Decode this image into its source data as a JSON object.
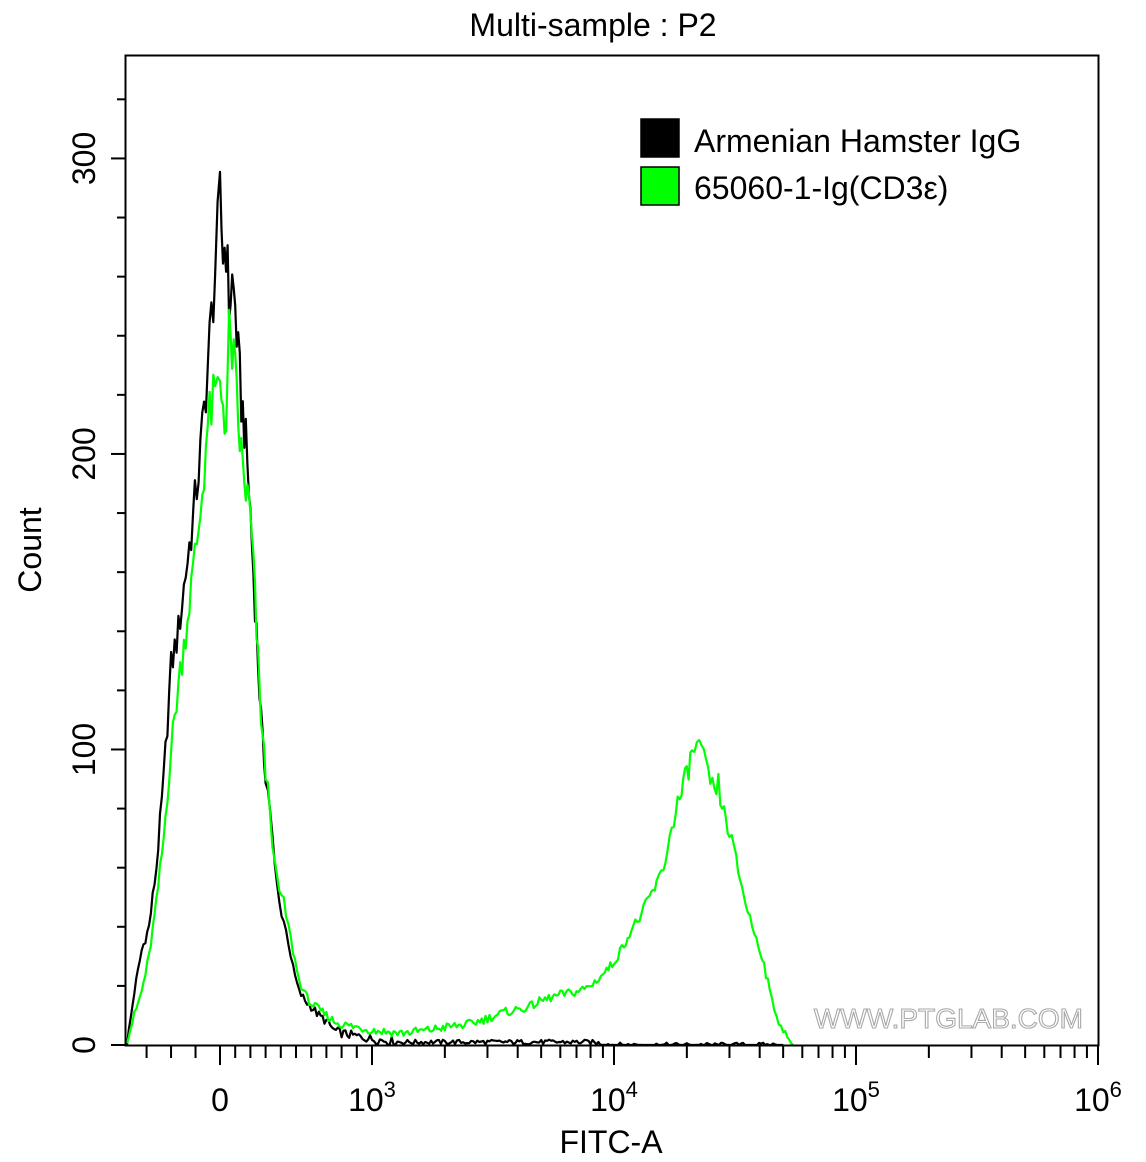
{
  "chart_data": {
    "type": "area",
    "title": "Multi-sample : P2",
    "xlabel": "FITC-A",
    "ylabel": "Count",
    "x_scale": "biexponential",
    "ylim": [
      0,
      335
    ],
    "y_ticks": [
      0,
      100,
      200,
      300
    ],
    "y_tick_labels": [
      "0",
      "100",
      "200",
      "300"
    ],
    "x_ticks": [
      {
        "label": "0",
        "base": "",
        "exp": "",
        "value": 0
      },
      {
        "label": "",
        "base": "10",
        "exp": "3",
        "value": 1000
      },
      {
        "label": "",
        "base": "10",
        "exp": "4",
        "value": 10000
      },
      {
        "label": "",
        "base": "10",
        "exp": "5",
        "value": 100000
      },
      {
        "label": "",
        "base": "10",
        "exp": "6",
        "value": 1000000
      }
    ],
    "legend": {
      "placement": "top-right"
    },
    "watermark": "WWW.PTGLAB.COM",
    "series": [
      {
        "name": "Armenian Hamster IgG",
        "color": "#000000",
        "points": [
          [
            -380,
            0
          ],
          [
            -350,
            18
          ],
          [
            -320,
            32
          ],
          [
            -290,
            40
          ],
          [
            -260,
            60
          ],
          [
            -230,
            90
          ],
          [
            -200,
            128
          ],
          [
            -170,
            140
          ],
          [
            -140,
            160
          ],
          [
            -110,
            178
          ],
          [
            -80,
            200
          ],
          [
            -50,
            230
          ],
          [
            -20,
            262
          ],
          [
            0,
            285
          ],
          [
            20,
            268
          ],
          [
            40,
            272
          ],
          [
            60,
            250
          ],
          [
            80,
            258
          ],
          [
            100,
            250
          ],
          [
            120,
            232
          ],
          [
            140,
            218
          ],
          [
            160,
            210
          ],
          [
            180,
            196
          ],
          [
            200,
            180
          ],
          [
            220,
            160
          ],
          [
            240,
            140
          ],
          [
            260,
            120
          ],
          [
            280,
            102
          ],
          [
            300,
            92
          ],
          [
            330,
            80
          ],
          [
            360,
            60
          ],
          [
            390,
            48
          ],
          [
            420,
            42
          ],
          [
            450,
            35
          ],
          [
            480,
            26
          ],
          [
            520,
            18
          ],
          [
            560,
            15
          ],
          [
            600,
            13
          ],
          [
            650,
            10
          ],
          [
            700,
            8
          ],
          [
            750,
            5
          ],
          [
            800,
            4
          ],
          [
            900,
            3
          ],
          [
            1000,
            2
          ],
          [
            1300,
            1
          ],
          [
            2000,
            1
          ],
          [
            3000,
            1
          ],
          [
            5000,
            1
          ],
          [
            8000,
            1
          ],
          [
            10000,
            0
          ],
          [
            20000,
            0
          ],
          [
            50000,
            0
          ]
        ]
      },
      {
        "name": "65060-1-Ig(CD3ε)",
        "color": "#00ff00",
        "points": [
          [
            -380,
            2
          ],
          [
            -350,
            10
          ],
          [
            -320,
            18
          ],
          [
            -290,
            30
          ],
          [
            -260,
            48
          ],
          [
            -230,
            70
          ],
          [
            -200,
            100
          ],
          [
            -170,
            122
          ],
          [
            -140,
            140
          ],
          [
            -110,
            160
          ],
          [
            -80,
            180
          ],
          [
            -50,
            210
          ],
          [
            -20,
            220
          ],
          [
            0,
            222
          ],
          [
            20,
            218
          ],
          [
            40,
            210
          ],
          [
            60,
            240
          ],
          [
            80,
            235
          ],
          [
            100,
            226
          ],
          [
            120,
            210
          ],
          [
            140,
            200
          ],
          [
            160,
            190
          ],
          [
            180,
            186
          ],
          [
            200,
            178
          ],
          [
            220,
            162
          ],
          [
            240,
            140
          ],
          [
            260,
            120
          ],
          [
            280,
            104
          ],
          [
            300,
            92
          ],
          [
            330,
            80
          ],
          [
            360,
            60
          ],
          [
            390,
            52
          ],
          [
            420,
            48
          ],
          [
            450,
            40
          ],
          [
            480,
            32
          ],
          [
            520,
            22
          ],
          [
            560,
            17
          ],
          [
            600,
            14
          ],
          [
            650,
            12
          ],
          [
            700,
            10
          ],
          [
            750,
            8
          ],
          [
            800,
            7
          ],
          [
            900,
            6
          ],
          [
            1000,
            5
          ],
          [
            1300,
            4
          ],
          [
            1700,
            5
          ],
          [
            2000,
            6
          ],
          [
            2500,
            7
          ],
          [
            3000,
            9
          ],
          [
            3500,
            11
          ],
          [
            4000,
            12
          ],
          [
            4500,
            13
          ],
          [
            5000,
            15
          ],
          [
            6000,
            17
          ],
          [
            7000,
            18
          ],
          [
            8000,
            20
          ],
          [
            9000,
            24
          ],
          [
            10000,
            28
          ],
          [
            11000,
            34
          ],
          [
            12000,
            40
          ],
          [
            13000,
            44
          ],
          [
            14000,
            50
          ],
          [
            15000,
            54
          ],
          [
            16000,
            60
          ],
          [
            17000,
            70
          ],
          [
            18000,
            80
          ],
          [
            19000,
            85
          ],
          [
            20000,
            92
          ],
          [
            21000,
            98
          ],
          [
            22000,
            102
          ],
          [
            23000,
            99
          ],
          [
            24000,
            93
          ],
          [
            25000,
            90
          ],
          [
            26000,
            84
          ],
          [
            27000,
            88
          ],
          [
            28000,
            80
          ],
          [
            30000,
            72
          ],
          [
            32000,
            62
          ],
          [
            35000,
            48
          ],
          [
            38000,
            38
          ],
          [
            41000,
            30
          ],
          [
            44000,
            18
          ],
          [
            47000,
            10
          ],
          [
            50000,
            5
          ],
          [
            53000,
            1
          ],
          [
            55000,
            0
          ]
        ]
      }
    ]
  }
}
